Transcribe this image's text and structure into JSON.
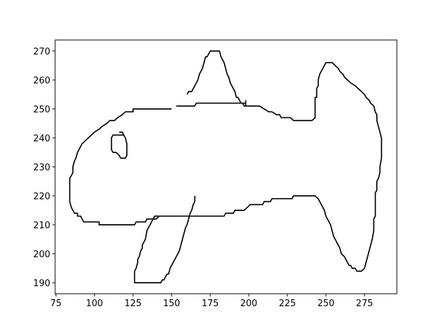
{
  "chart_data": {
    "type": "line",
    "color": "#000000",
    "grid": false,
    "x": [
      150,
      125,
      125,
      120,
      118,
      115,
      113,
      110,
      108,
      105,
      103,
      100,
      98,
      96,
      94,
      92,
      91,
      90,
      89,
      88,
      87,
      86,
      86,
      85,
      84,
      84,
      85,
      86,
      87,
      89,
      89,
      91,
      92,
      93,
      103,
      103,
      126,
      127,
      133,
      134,
      140,
      142,
      164,
      184,
      185,
      190,
      191,
      197,
      199,
      201,
      209,
      210,
      214,
      215,
      228,
      229,
      243,
      245,
      246,
      247,
      248,
      249,
      250,
      251,
      252,
      253,
      254,
      255,
      256,
      257,
      258,
      259,
      260,
      262,
      263,
      264,
      265,
      266,
      267,
      269,
      270,
      273,
      275,
      276,
      277,
      278,
      279,
      280,
      281,
      281,
      282,
      282,
      283,
      283,
      284,
      285,
      285,
      286,
      286,
      285,
      284,
      283,
      283,
      282,
      281,
      279,
      278,
      276,
      275,
      273,
      271,
      269,
      266,
      264,
      262,
      261,
      259,
      258,
      256,
      254,
      253,
      250,
      249,
      248,
      247,
      246,
      245,
      245,
      244,
      244,
      243,
      243,
      241,
      229,
      227,
      221,
      220,
      218,
      215,
      213,
      210,
      207,
      198,
      198,
      166,
      165,
      153,
      null,
      160,
      161,
      163,
      164,
      165,
      166,
      167,
      168,
      169,
      170,
      171,
      172,
      173,
      174,
      175,
      181,
      182,
      183,
      184,
      185,
      186,
      187,
      188,
      189,
      190,
      191,
      192,
      193,
      194,
      195,
      196,
      197,
      198,
      198,
      null,
      116,
      118,
      119,
      120,
      121,
      121,
      120,
      117,
      116,
      114,
      112,
      111,
      111,
      112,
      119,
      null,
      165,
      165,
      164,
      163,
      162,
      161,
      160,
      159,
      158,
      157,
      156,
      155,
      153,
      152,
      151,
      150,
      149,
      148,
      147,
      146,
      145,
      144,
      143,
      126,
      126,
      127,
      128,
      128,
      129,
      130,
      131,
      131,
      132,
      133,
      134,
      135,
      136,
      138,
      139,
      148
    ],
    "values": [
      250,
      250,
      249,
      249,
      248,
      247,
      246,
      246,
      245,
      244,
      243,
      242,
      241,
      240,
      239,
      238,
      237,
      236,
      235,
      233,
      232,
      230,
      228,
      227,
      226,
      218,
      216,
      215,
      214,
      214,
      213,
      213,
      212,
      211,
      211,
      210,
      210,
      211,
      211,
      212,
      212,
      213,
      213,
      213,
      214,
      214,
      215,
      215,
      216,
      217,
      217,
      218,
      218,
      219,
      219,
      220,
      220,
      219,
      218,
      217,
      216,
      215,
      213,
      212,
      211,
      210,
      208,
      206,
      205,
      204,
      203,
      202,
      200,
      199,
      198,
      197,
      196,
      196,
      195,
      195,
      194,
      194,
      195,
      197,
      199,
      201,
      203,
      205,
      208,
      212,
      213,
      221,
      222,
      225,
      226,
      228,
      230,
      233,
      240,
      242,
      244,
      246,
      248,
      249,
      251,
      252,
      253,
      254,
      255,
      256,
      257,
      258,
      259,
      260,
      261,
      262,
      263,
      264,
      265,
      266,
      266,
      266,
      265,
      264,
      263,
      262,
      260,
      258,
      257,
      254,
      254,
      247,
      246,
      246,
      247,
      247,
      248,
      248,
      249,
      249,
      250,
      251,
      251,
      252,
      252,
      251,
      251,
      null,
      255,
      256,
      256,
      257,
      258,
      259,
      260,
      262,
      263,
      264,
      266,
      268,
      268,
      269,
      270,
      270,
      268,
      267,
      266,
      264,
      262,
      261,
      259,
      258,
      257,
      256,
      254,
      254,
      253,
      252,
      252,
      251,
      251,
      253,
      null,
      242,
      242,
      241,
      240,
      238,
      234,
      233,
      233,
      234,
      235,
      235,
      236,
      240,
      241,
      241,
      null,
      220,
      218,
      217,
      215,
      214,
      212,
      210,
      209,
      207,
      205,
      203,
      201,
      199,
      198,
      197,
      196,
      195,
      193,
      193,
      192,
      191,
      191,
      190,
      190,
      194,
      195,
      197,
      198,
      199,
      201,
      202,
      203,
      204,
      205,
      208,
      209,
      210,
      212,
      213,
      213
    ],
    "xlim": [
      74.5,
      296
    ],
    "ylim": [
      186.2,
      273.8
    ],
    "xticks": [
      75,
      100,
      125,
      150,
      175,
      200,
      225,
      250,
      275
    ],
    "yticks": [
      190,
      200,
      210,
      220,
      230,
      240,
      250,
      260,
      270
    ]
  }
}
